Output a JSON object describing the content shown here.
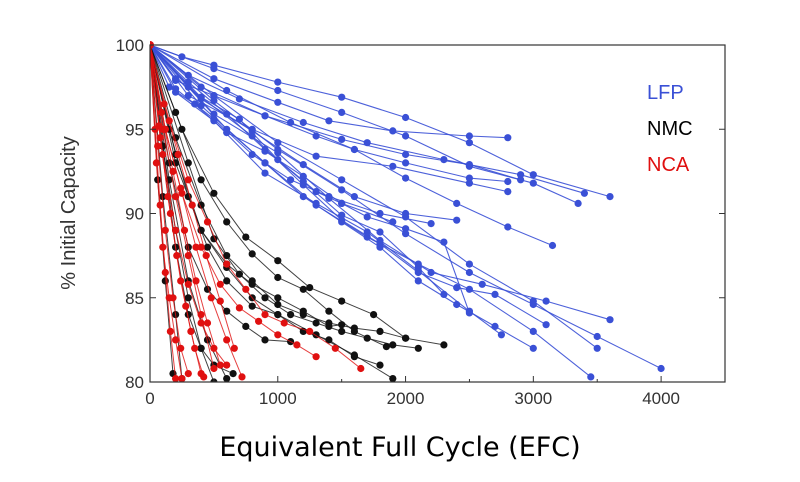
{
  "chart_data": {
    "type": "line",
    "title": "",
    "xlabel": "Equivalent Full Cycle (EFC)",
    "ylabel": "% Initial Capacity",
    "xlim": [
      0,
      4500
    ],
    "ylim": [
      80,
      100
    ],
    "xticks": [
      "0",
      "1000",
      "2000",
      "3000",
      "4000"
    ],
    "yticks": [
      "80",
      "85",
      "90",
      "95",
      "100"
    ],
    "grid": false,
    "legend_position": "top-right",
    "legend": [
      {
        "name": "LFP",
        "color": "#3a50d6"
      },
      {
        "name": "NMC",
        "color": "#000000"
      },
      {
        "name": "NCA",
        "color": "#e01010"
      }
    ],
    "series": [
      {
        "group": "LFP",
        "color": "#3a50d6",
        "x": [
          0,
          250,
          500,
          1000,
          1500,
          2000,
          2500,
          3000,
          3600
        ],
        "y": [
          100,
          99.3,
          98.8,
          97.8,
          96.9,
          95.7,
          94.2,
          92.3,
          91.0
        ]
      },
      {
        "group": "LFP",
        "color": "#3a50d6",
        "x": [
          0,
          500,
          1000,
          1500,
          2000,
          2500,
          3000,
          3350
        ],
        "y": [
          100,
          98.6,
          97.3,
          96.0,
          94.6,
          92.8,
          91.8,
          90.6
        ]
      },
      {
        "group": "LFP",
        "color": "#3a50d6",
        "x": [
          0,
          500,
          1000,
          1400,
          1900,
          2500,
          2800
        ],
        "y": [
          100,
          98.0,
          96.6,
          95.5,
          94.9,
          94.6,
          94.5
        ]
      },
      {
        "group": "LFP",
        "color": "#3a50d6",
        "x": [
          0,
          300,
          700,
          1200,
          1700,
          2300,
          2900,
          3400
        ],
        "y": [
          100,
          98.2,
          96.8,
          95.4,
          94.2,
          93.2,
          92.3,
          91.2
        ]
      },
      {
        "group": "LFP",
        "color": "#3a50d6",
        "x": [
          0,
          400,
          900,
          1500,
          2000,
          2500,
          2900
        ],
        "y": [
          100,
          97.5,
          95.8,
          94.4,
          93.5,
          92.9,
          92.0
        ]
      },
      {
        "group": "LFP",
        "color": "#3a50d6",
        "x": [
          0,
          300,
          800,
          1300,
          1900,
          2500,
          2800
        ],
        "y": [
          100,
          97.0,
          95.0,
          93.4,
          92.8,
          91.8,
          91.3
        ]
      },
      {
        "group": "LFP",
        "color": "#3a50d6",
        "x": [
          0,
          200,
          500,
          900,
          1300,
          1600,
          2000,
          2500,
          2800
        ],
        "y": [
          100,
          97.9,
          97.0,
          95.8,
          94.6,
          93.8,
          93.0,
          92.1,
          91.9
        ]
      },
      {
        "group": "LFP",
        "color": "#3a50d6",
        "x": [
          0,
          400,
          800,
          1200,
          1600,
          2000,
          2400
        ],
        "y": [
          100,
          96.8,
          94.9,
          92.9,
          91.0,
          90.0,
          89.6
        ]
      },
      {
        "group": "LFP",
        "color": "#3a50d6",
        "x": [
          0,
          500,
          1000,
          1500,
          2000,
          2500,
          3000,
          3500
        ],
        "y": [
          100,
          97.0,
          94.2,
          92.0,
          89.8,
          87.0,
          84.8,
          82.0
        ]
      },
      {
        "group": "LFP",
        "color": "#3a50d6",
        "x": [
          0,
          500,
          1000,
          1500,
          2000,
          2500,
          3000,
          3500,
          4000
        ],
        "y": [
          100,
          96.7,
          93.8,
          91.4,
          88.8,
          86.5,
          84.6,
          82.7,
          80.8
        ]
      },
      {
        "group": "LFP",
        "color": "#3a50d6",
        "x": [
          0,
          400,
          900,
          1300,
          1700,
          2100,
          2500,
          3000,
          3450
        ],
        "y": [
          100,
          96.4,
          93.0,
          90.5,
          88.6,
          87.0,
          85.5,
          83.0,
          80.3
        ]
      },
      {
        "group": "LFP",
        "color": "#3a50d6",
        "x": [
          0,
          200,
          500,
          800,
          1100,
          1400,
          1800,
          2200
        ],
        "y": [
          100,
          97.4,
          95.6,
          93.5,
          92.0,
          91.0,
          90.0,
          89.4
        ]
      },
      {
        "group": "LFP",
        "color": "#3a50d6",
        "x": [
          0,
          400,
          800,
          1200,
          1500,
          1800,
          2100,
          2400,
          2700,
          3100
        ],
        "y": [
          100,
          96.9,
          94.6,
          91.7,
          89.6,
          88.2,
          86.5,
          85.6,
          85.2,
          83.4
        ]
      },
      {
        "group": "LFP",
        "color": "#3a50d6",
        "x": [
          0,
          500,
          1000,
          1400,
          1800,
          2200,
          2600,
          3100,
          3600
        ],
        "y": [
          100,
          95.9,
          93.6,
          90.9,
          88.4,
          86.5,
          85.8,
          84.8,
          83.7
        ]
      },
      {
        "group": "LFP",
        "color": "#3a50d6",
        "x": [
          0,
          300,
          600,
          900,
          1200,
          1500,
          1800,
          2100,
          2300
        ],
        "y": [
          100,
          97.8,
          95.9,
          93.8,
          91.9,
          89.9,
          88.9,
          86.8,
          85.2
        ]
      },
      {
        "group": "LFP",
        "color": "#3a50d6",
        "x": [
          0,
          200,
          500,
          900,
          1300,
          1700,
          2100,
          2500,
          2750
        ],
        "y": [
          100,
          97.2,
          95.5,
          92.4,
          90.6,
          88.9,
          86.6,
          84.2,
          82.8
        ]
      },
      {
        "group": "LFP",
        "color": "#3a50d6",
        "x": [
          0,
          200,
          400,
          700,
          1000,
          1300,
          1500,
          1700,
          2000,
          2300,
          2500
        ],
        "y": [
          100,
          98.0,
          96.9,
          95.6,
          93.2,
          91.3,
          90.6,
          89.8,
          89.1,
          88.3,
          84.1
        ]
      },
      {
        "group": "LFP",
        "color": "#3a50d6",
        "x": [
          0,
          300,
          600,
          900,
          1200,
          1500,
          1800,
          2100,
          2400,
          2700,
          3000
        ],
        "y": [
          100,
          97.5,
          95.0,
          93.0,
          91.0,
          89.5,
          88.0,
          86.0,
          84.6,
          83.3,
          82.0
        ]
      },
      {
        "group": "LFP",
        "color": "#3a50d6",
        "x": [
          0,
          150,
          350,
          600,
          900,
          1200,
          1500,
          1900
        ],
        "y": [
          100,
          97.5,
          96.5,
          94.8,
          93.7,
          92.2,
          90.6,
          89.5
        ]
      },
      {
        "group": "LFP",
        "color": "#3a50d6",
        "x": [
          0,
          600,
          1100,
          1600,
          2000,
          2400,
          2800,
          3150
        ],
        "y": [
          100,
          97.3,
          95.4,
          93.8,
          92.1,
          90.6,
          89.2,
          88.1
        ]
      },
      {
        "group": "NMC",
        "color": "#111111",
        "x": [
          0,
          100,
          200,
          300,
          400,
          500
        ],
        "y": [
          100,
          94.0,
          89.0,
          85.0,
          82.0,
          80.0
        ]
      },
      {
        "group": "NMC",
        "color": "#111111",
        "x": [
          0,
          60,
          120,
          180
        ],
        "y": [
          100,
          92.0,
          86.0,
          80.5
        ]
      },
      {
        "group": "NMC",
        "color": "#111111",
        "x": [
          0,
          100,
          200,
          250
        ],
        "y": [
          100,
          91.0,
          84.0,
          80.2
        ]
      },
      {
        "group": "NMC",
        "color": "#111111",
        "x": [
          0,
          150,
          300,
          450,
          600
        ],
        "y": [
          100,
          92.0,
          86.0,
          82.5,
          80.2
        ]
      },
      {
        "group": "NMC",
        "color": "#111111",
        "x": [
          0,
          200,
          400,
          600,
          800,
          1000,
          1200,
          1400,
          1600,
          1850
        ],
        "y": [
          100,
          96.0,
          92.0,
          89.5,
          87.6,
          86.2,
          85.5,
          84.2,
          83.0,
          82.1
        ]
      },
      {
        "group": "NMC",
        "color": "#111111",
        "x": [
          0,
          250,
          500,
          750,
          1000,
          1250,
          1500,
          1750,
          2000,
          2300
        ],
        "y": [
          100,
          95.0,
          91.2,
          88.6,
          87.2,
          85.6,
          84.8,
          84.0,
          82.6,
          82.2
        ]
      },
      {
        "group": "NMC",
        "color": "#111111",
        "x": [
          0,
          200,
          400,
          600,
          800,
          1000,
          1200,
          1400,
          1600,
          1800,
          2000
        ],
        "y": [
          100,
          94.5,
          90.5,
          87.5,
          86.0,
          84.6,
          84.0,
          83.5,
          83.2,
          83.0,
          82.6
        ]
      },
      {
        "group": "NMC",
        "color": "#111111",
        "x": [
          0,
          300,
          500,
          700,
          900,
          1100,
          1300,
          1500,
          1700,
          1900,
          2100
        ],
        "y": [
          100,
          93.0,
          88.5,
          86.4,
          85.0,
          84.0,
          83.5,
          83.0,
          82.6,
          82.2,
          82.0
        ]
      },
      {
        "group": "NMC",
        "color": "#111111",
        "x": [
          0,
          150,
          300,
          450,
          600,
          800,
          1000,
          1200,
          1400,
          1600,
          1800
        ],
        "y": [
          100,
          95.0,
          91.0,
          88.0,
          86.0,
          84.5,
          84.0,
          83.0,
          82.5,
          81.5,
          81.0
        ]
      },
      {
        "group": "NMC",
        "color": "#111111",
        "x": [
          0,
          200,
          400,
          600,
          800,
          1000,
          1300,
          1600,
          1900
        ],
        "y": [
          100,
          93.5,
          89.0,
          86.8,
          85.0,
          84.0,
          82.8,
          81.6,
          80.2
        ]
      },
      {
        "group": "NMC",
        "color": "#111111",
        "x": [
          0,
          150,
          300,
          450,
          600,
          750,
          900,
          1100
        ],
        "y": [
          100,
          93.0,
          88.0,
          85.5,
          84.2,
          83.3,
          82.5,
          82.4
        ]
      },
      {
        "group": "NMC",
        "color": "#111111",
        "x": [
          0,
          200,
          400,
          600,
          800,
          1000,
          1200,
          1400,
          1500
        ],
        "y": [
          100,
          93.0,
          89.0,
          87.0,
          85.8,
          85.0,
          84.2,
          83.3,
          83.4
        ]
      },
      {
        "group": "NMC",
        "color": "#111111",
        "x": [
          0,
          100,
          200,
          300,
          400,
          500,
          650
        ],
        "y": [
          100,
          94.0,
          88.0,
          84.0,
          82.0,
          81.0,
          80.5
        ]
      },
      {
        "group": "NCA",
        "color": "#e01010",
        "x": [
          0,
          60,
          120,
          180,
          240,
          300
        ],
        "y": [
          100,
          94.0,
          89.0,
          85.0,
          82.0,
          80.5
        ]
      },
      {
        "group": "NCA",
        "color": "#e01010",
        "x": [
          0,
          80,
          160,
          240,
          320,
          400
        ],
        "y": [
          100,
          94.5,
          90.0,
          86.0,
          83.0,
          80.5
        ]
      },
      {
        "group": "NCA",
        "color": "#e01010",
        "x": [
          0,
          100,
          200,
          300,
          400,
          500
        ],
        "y": [
          100,
          95.0,
          91.0,
          87.5,
          84.0,
          80.8
        ]
      },
      {
        "group": "NCA",
        "color": "#e01010",
        "x": [
          0,
          50,
          100,
          150,
          200,
          250
        ],
        "y": [
          100,
          93.0,
          88.0,
          85.0,
          82.5,
          80.2
        ]
      },
      {
        "group": "NCA",
        "color": "#e01010",
        "x": [
          0,
          120,
          240,
          360,
          480,
          600,
          720
        ],
        "y": [
          100,
          95.0,
          91.5,
          88.0,
          85.0,
          82.5,
          80.3
        ]
      },
      {
        "group": "NCA",
        "color": "#e01010",
        "x": [
          0,
          150,
          300,
          450,
          600,
          750,
          900,
          1050,
          1250,
          1450,
          1650
        ],
        "y": [
          100,
          95.5,
          92.0,
          89.5,
          87.0,
          85.5,
          84.0,
          83.5,
          83.0,
          82.0,
          80.8
        ]
      },
      {
        "group": "NCA",
        "color": "#e01010",
        "x": [
          0,
          120,
          250,
          400,
          550,
          700,
          850,
          1000,
          1150,
          1300
        ],
        "y": [
          100,
          95.0,
          91.2,
          88.0,
          85.8,
          84.4,
          83.6,
          82.8,
          82.2,
          81.5
        ]
      },
      {
        "group": "NCA",
        "color": "#e01010",
        "x": [
          0,
          100,
          200,
          300,
          400,
          500,
          600
        ],
        "y": [
          100,
          93.5,
          89.0,
          85.8,
          83.5,
          82.0,
          81.0
        ]
      },
      {
        "group": "NCA",
        "color": "#e01010",
        "x": [
          0,
          70,
          140,
          210,
          280,
          350,
          420
        ],
        "y": [
          100,
          95.2,
          91.0,
          87.5,
          84.5,
          82.0,
          80.3
        ]
      },
      {
        "group": "NCA",
        "color": "#e01010",
        "x": [
          0,
          40,
          80,
          120,
          160,
          200
        ],
        "y": [
          100,
          95.0,
          90.5,
          86.5,
          83.0,
          80.2
        ]
      },
      {
        "group": "NCA",
        "color": "#e01010",
        "x": [
          0,
          90,
          180,
          270,
          360,
          450,
          550
        ],
        "y": [
          100,
          96.0,
          92.5,
          89.0,
          86.0,
          83.5,
          81.0
        ]
      },
      {
        "group": "NCA",
        "color": "#e01010",
        "x": [
          0,
          110,
          220,
          330,
          440,
          550,
          660
        ],
        "y": [
          100,
          96.5,
          93.5,
          90.5,
          87.5,
          84.8,
          82.0
        ]
      }
    ]
  }
}
